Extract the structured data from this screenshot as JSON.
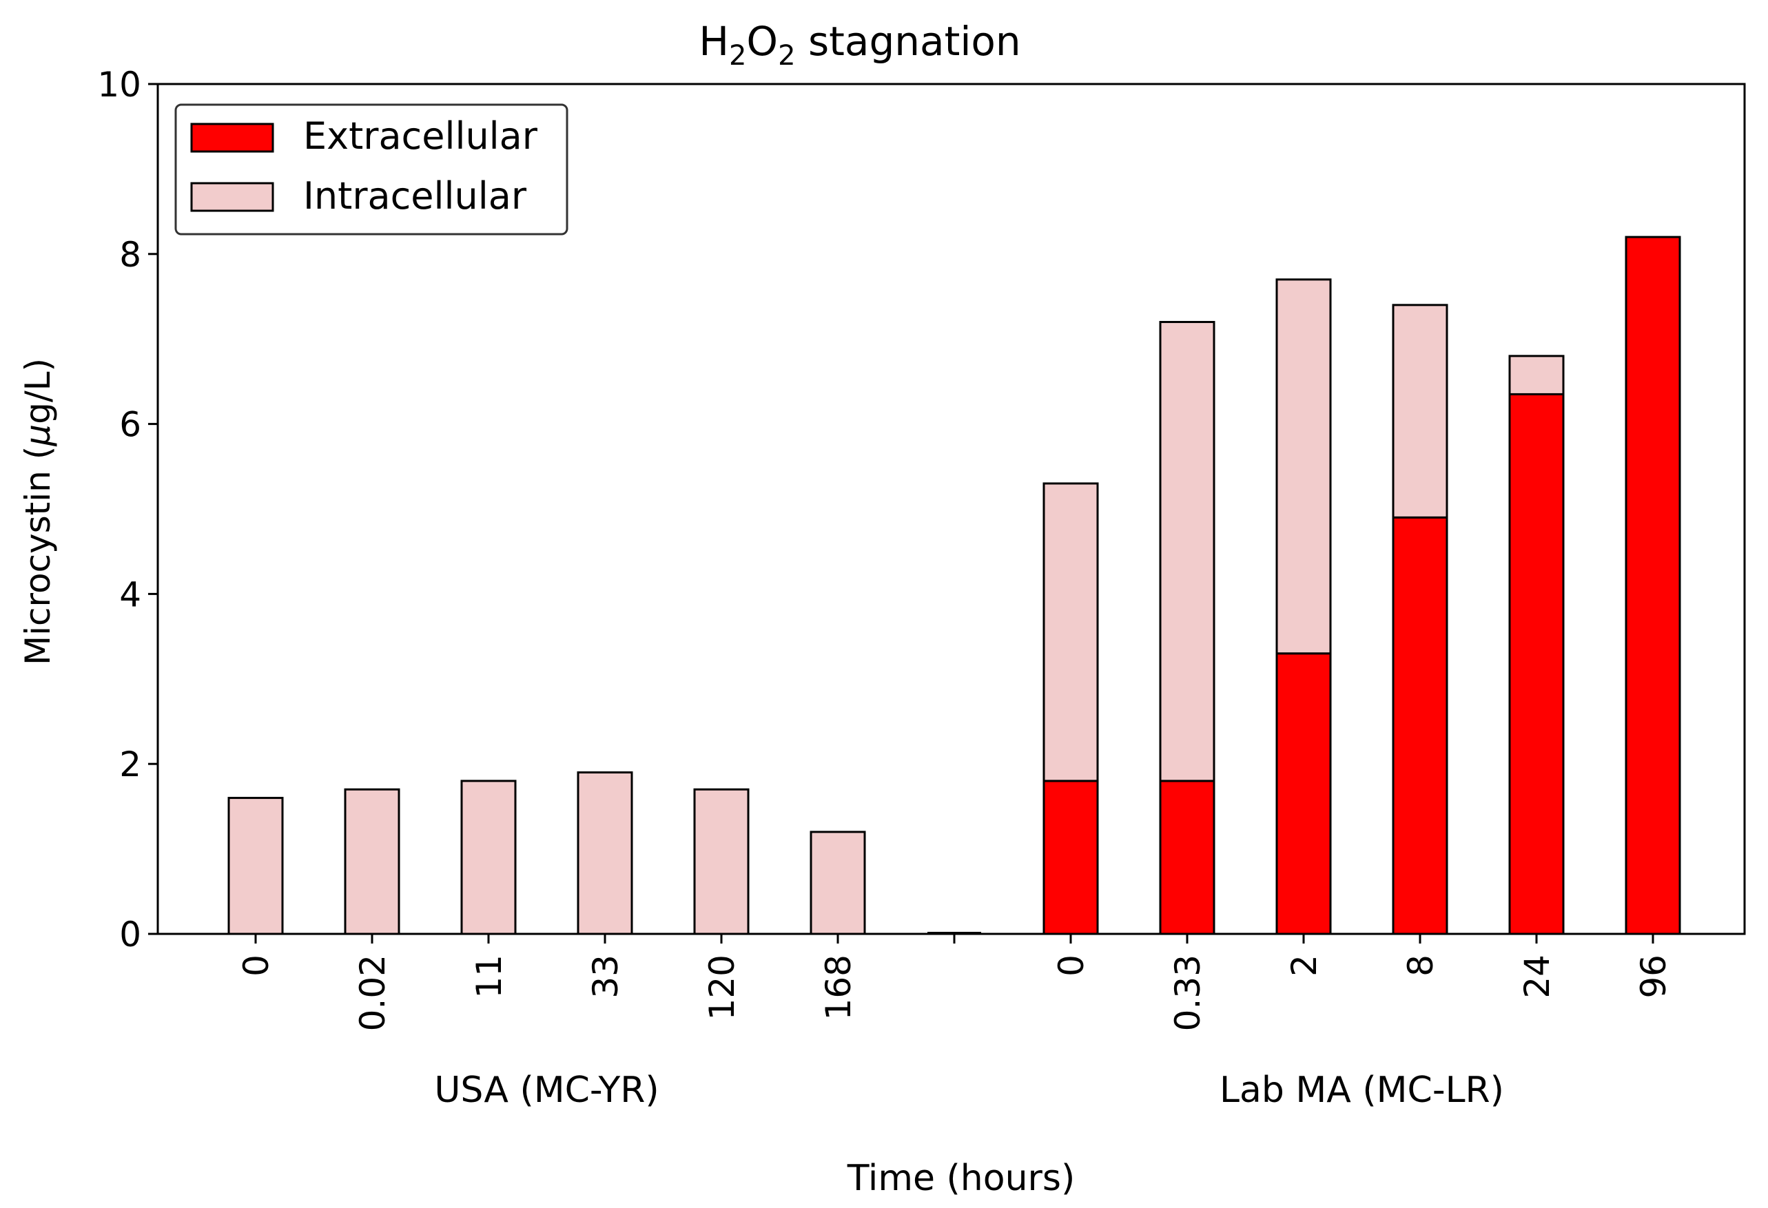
{
  "chart_data": {
    "type": "bar",
    "stacked": true,
    "title_main": "H",
    "title_sub1": "2",
    "title_mid": "O",
    "title_sub2": "2",
    "title_tail": " stagnation",
    "xlabel": "Time (hours)",
    "ylabel_prefix": "Microcystin (",
    "ylabel_mu": "μ",
    "ylabel_suffix": "g/L)",
    "ylim": [
      0,
      10
    ],
    "yticks": [
      0,
      2,
      4,
      6,
      8,
      10
    ],
    "categories": [
      "0",
      "0.02",
      "11",
      "33",
      "120",
      "168",
      "",
      "0",
      "0.33",
      "2",
      "8",
      "24",
      "96"
    ],
    "groups": [
      {
        "label": "USA (MC-YR)",
        "start": 0,
        "end": 5
      },
      {
        "label": "Lab MA (MC-LR)",
        "start": 7,
        "end": 12
      }
    ],
    "series": [
      {
        "name": "Extracellular",
        "color": "#ff0000",
        "values": [
          0,
          0,
          0,
          0,
          0,
          0,
          0,
          1.8,
          1.8,
          3.3,
          4.9,
          6.35,
          8.2
        ]
      },
      {
        "name": "Intracellular",
        "color": "#f2cccc",
        "values": [
          1.6,
          1.7,
          1.8,
          1.9,
          1.7,
          1.2,
          0,
          3.5,
          5.4,
          4.4,
          2.5,
          0.45,
          0
        ]
      }
    ],
    "legend_position": "top-left"
  }
}
